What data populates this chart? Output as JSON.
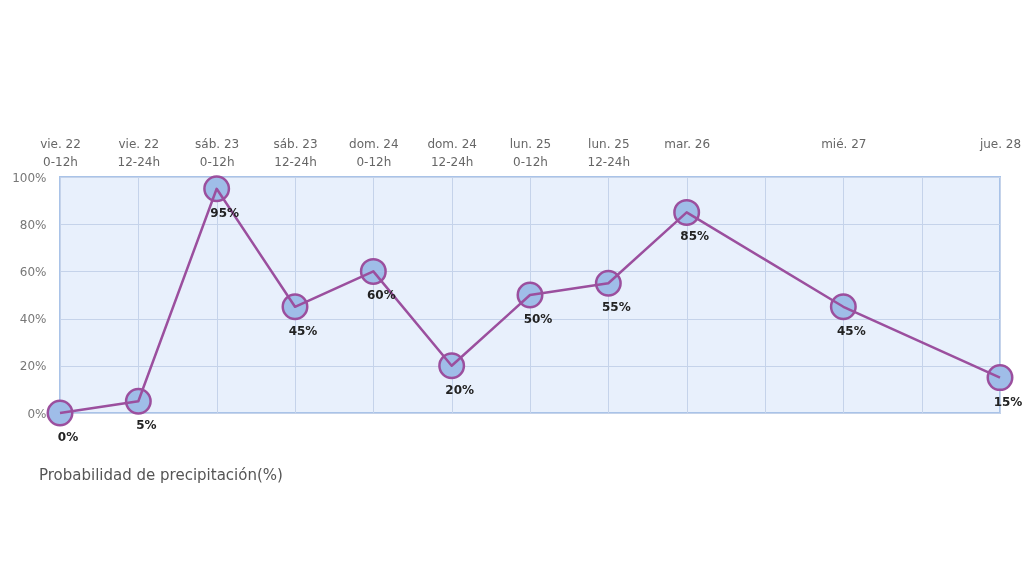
{
  "chart_data": {
    "type": "line",
    "categories": [
      "vie. 22\n0-12h",
      "vie. 22\n12-24h",
      "sáb. 23\n0-12h",
      "sáb. 23\n12-24h",
      "dom. 24\n0-12h",
      "dom. 24\n12-24h",
      "lun. 25\n0-12h",
      "lun. 25\n12-24h",
      "mar. 26",
      null,
      "mié. 27",
      null,
      "jue. 28"
    ],
    "series": [
      {
        "name": "Probabilidad de precipitación(%)",
        "color": "#9b4f9e",
        "values": [
          0,
          5,
          95,
          45,
          60,
          20,
          50,
          55,
          85,
          null,
          45,
          null,
          15
        ],
        "value_labels": [
          "0%",
          "5%",
          "95%",
          "45%",
          "60%",
          "20%",
          "50%",
          "55%",
          "85%",
          null,
          "45%",
          null,
          "15%"
        ]
      }
    ],
    "ylim": [
      0,
      100
    ],
    "yticks": [
      {
        "value": 0,
        "label": "0%"
      },
      {
        "value": 20,
        "label": "20%"
      },
      {
        "value": 40,
        "label": "40%"
      },
      {
        "value": 60,
        "label": "60%"
      },
      {
        "value": 80,
        "label": "80%"
      },
      {
        "value": 100,
        "label": "100%"
      }
    ],
    "grid": true,
    "legend": "bottom left",
    "marker": "circle",
    "line_style": "solid"
  }
}
